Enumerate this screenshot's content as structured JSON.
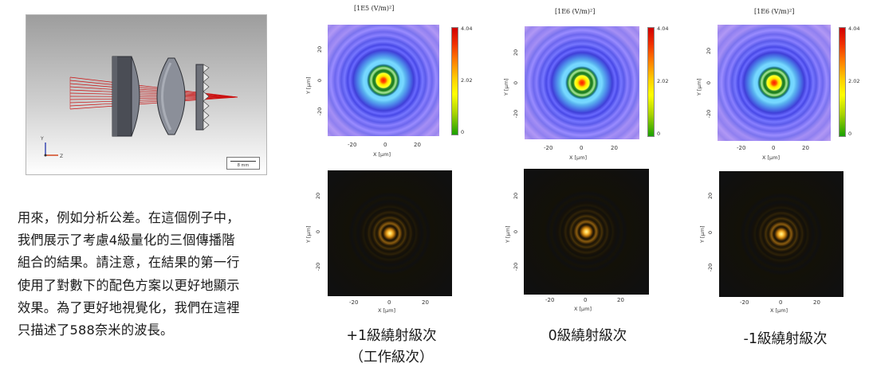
{
  "viewer": {
    "axis_y": "Y",
    "axis_z": "Z",
    "scale_label": "8 mm"
  },
  "description": {
    "lines": [
      "用來，例如分析公差。在這個例子中，",
      "我們展示了考慮4級量化的三個傳播階",
      "組合的結果。請注意，在結果的第一行",
      "使用了對數下的配色方案以更好地顯示",
      "效果。為了更好地視覺化，我們在這裡",
      "只描述了588奈米的波長。"
    ]
  },
  "top_plots": [
    {
      "title": "[1E5 (V/m)²]",
      "colorbar_ticks": [
        "4.04",
        "2.02",
        "0"
      ],
      "x_ticks": [
        "-20",
        "0",
        "20"
      ],
      "y_ticks": [
        "20",
        "0",
        "-20"
      ],
      "xlabel": "X [µm]",
      "ylabel": "Y [µm]"
    },
    {
      "title": "[1E6 (V/m)²]",
      "colorbar_ticks": [
        "4.04",
        "2.02",
        "0"
      ],
      "x_ticks": [
        "-20",
        "0",
        "20"
      ],
      "y_ticks": [
        "20",
        "0",
        "-20"
      ],
      "xlabel": "X [µm]",
      "ylabel": "Y [µm]"
    },
    {
      "title": "[1E6 (V/m)²]",
      "colorbar_ticks": [
        "4.04",
        "2.02",
        "0"
      ],
      "x_ticks": [
        "-20",
        "0",
        "20"
      ],
      "y_ticks": [
        "20",
        "0",
        "-20"
      ],
      "xlabel": "X [µm]",
      "ylabel": "Y [µm]"
    }
  ],
  "bottom_plots": [
    {
      "x_ticks": [
        "-20",
        "0",
        "20"
      ],
      "y_ticks": [
        "20",
        "0",
        "-20"
      ],
      "xlabel": "X [µm]",
      "ylabel": "Y [µm]"
    },
    {
      "x_ticks": [
        "-20",
        "0",
        "20"
      ],
      "y_ticks": [
        "20",
        "0",
        "-20"
      ],
      "xlabel": "X [µm]",
      "ylabel": "Y [µm]"
    },
    {
      "x_ticks": [
        "-20",
        "0",
        "20"
      ],
      "y_ticks": [
        "20",
        "0",
        "-20"
      ],
      "xlabel": "X [µm]",
      "ylabel": "Y [µm]"
    }
  ],
  "captions": [
    {
      "line1": "+1級繞射級次",
      "line2": "（工作級次）"
    },
    {
      "line1": "0級繞射級次",
      "line2": ""
    },
    {
      "line1": "-1級繞射級次",
      "line2": ""
    }
  ],
  "colors": {
    "ray": "#cc1111",
    "lens_dark": "#4a4d55",
    "lens_light": "#8b8f99",
    "axis_x": "#d03a10",
    "axis_y": "#2f3fb0"
  }
}
